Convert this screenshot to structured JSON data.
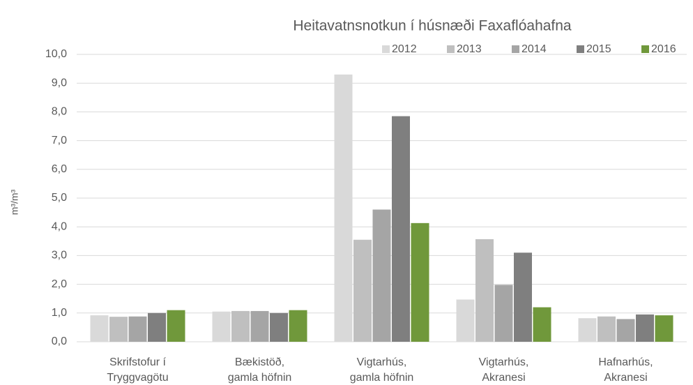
{
  "chart_data": {
    "type": "bar",
    "title": "Heitavatnsnotkun í húsnæði Faxaflóahafna",
    "y_label": "m³/m³",
    "categories": [
      "Skrifstofur í\nTryggvagötu",
      "Bækistöð,\ngamla höfnin",
      "Vigtarhús,\ngamla höfnin",
      "Vigtarhús,\nAkranesi",
      "Hafnarhús,\nAkranesi"
    ],
    "series": [
      {
        "name": "2012",
        "color": "#d9d9d9",
        "values": [
          0.92,
          1.05,
          9.3,
          1.47,
          0.82
        ]
      },
      {
        "name": "2013",
        "color": "#bfbfbf",
        "values": [
          0.87,
          1.07,
          3.55,
          3.57,
          0.88
        ]
      },
      {
        "name": "2014",
        "color": "#a5a5a5",
        "values": [
          0.88,
          1.07,
          4.6,
          1.98,
          0.79
        ]
      },
      {
        "name": "2015",
        "color": "#7f7f7f",
        "values": [
          1.0,
          1.0,
          7.85,
          3.1,
          0.95
        ]
      },
      {
        "name": "2016",
        "color": "#70983b",
        "values": [
          1.1,
          1.1,
          4.13,
          1.2,
          0.92
        ]
      }
    ],
    "ylim": [
      0,
      10
    ],
    "yticks": [
      {
        "value": 0,
        "label": "0,0"
      },
      {
        "value": 1,
        "label": "1,0"
      },
      {
        "value": 2,
        "label": "2,0"
      },
      {
        "value": 3,
        "label": "3,0"
      },
      {
        "value": 4,
        "label": "4,0"
      },
      {
        "value": 5,
        "label": "5,0"
      },
      {
        "value": 6,
        "label": "6,0"
      },
      {
        "value": 7,
        "label": "7,0"
      },
      {
        "value": 8,
        "label": "8,0"
      },
      {
        "value": 9,
        "label": "9,0"
      },
      {
        "value": 10,
        "label": "10,0"
      }
    ],
    "grid": true,
    "legend": "top-right"
  }
}
